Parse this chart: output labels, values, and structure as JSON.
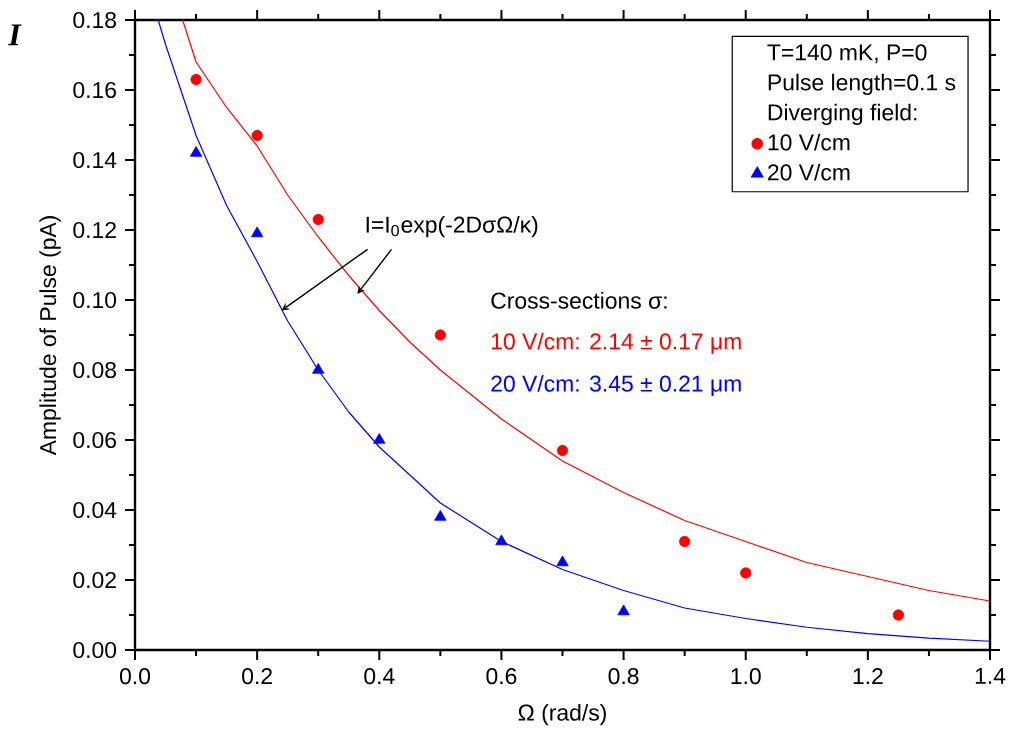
{
  "chart_data": {
    "type": "scatter",
    "xlabel": "Ω (rad/s)",
    "ylabel": "Amplitude of Pulse (pA)",
    "legend_title": "Diverging field:",
    "legend": "top right",
    "xlim": [
      0,
      1.4
    ],
    "ylim": [
      0,
      0.18
    ],
    "xticks": [
      {
        "value": 0,
        "label": "0.0"
      },
      {
        "value": 0.2,
        "label": "0.2"
      },
      {
        "value": 0.4,
        "label": "0.4"
      },
      {
        "value": 0.6,
        "label": "0.6"
      },
      {
        "value": 0.8,
        "label": "0.8"
      },
      {
        "value": 1,
        "label": "1.0"
      },
      {
        "value": 1.2,
        "label": "1.2"
      },
      {
        "value": 1.4,
        "label": "1.4"
      }
    ],
    "yticks": [
      {
        "value": 0,
        "label": "0.00"
      },
      {
        "value": 0.02,
        "label": "0.02"
      },
      {
        "value": 0.04,
        "label": "0.04"
      },
      {
        "value": 0.06,
        "label": "0.06"
      },
      {
        "value": 0.08,
        "label": "0.08"
      },
      {
        "value": 0.1,
        "label": "0.10"
      },
      {
        "value": 0.12,
        "label": "0.12"
      },
      {
        "value": 0.14,
        "label": "0.14"
      },
      {
        "value": 0.16,
        "label": "0.16"
      },
      {
        "value": 0.18,
        "label": "0.18"
      }
    ],
    "annotations": [
      "I",
      {
        "text": "I=I$_{0}$exp(-2DσΩ/κ)",
        "x": 0.24,
        "y": 0.097
      },
      "T=140 mK, P=0",
      "Pulse length=0.1 s",
      "Cross-sections σ:",
      "10 V/cm: 2.14 ± 0.17 μm",
      "20 V/cm: 3.45 ± 0.21 μm"
    ],
    "series": [
      {
        "name": "10 V/cm",
        "color": "#ff0000",
        "marker": "circle",
        "x": [
          0.1,
          0.2,
          0.3,
          0.5,
          0.7,
          0.9,
          1.0,
          1.25
        ],
        "values": [
          0.163,
          0.147,
          0.123,
          0.09,
          0.057,
          0.031,
          0.022,
          0.01
        ]
      },
      {
        "name": "20 V/cm",
        "color": "#0000ff",
        "marker": "triangle",
        "x": [
          0.1,
          0.2,
          0.3,
          0.4,
          0.5,
          0.6,
          0.7,
          0.8
        ],
        "values": [
          0.142,
          0.119,
          0.08,
          0.06,
          0.038,
          0.031,
          0.025,
          0.011
        ]
      },
      {
        "type": "line",
        "color": "#ff0000",
        "x": [
          0.078,
          0.1,
          0.15,
          0.2,
          0.25,
          0.3,
          0.35,
          0.4,
          0.45,
          0.5,
          0.6,
          0.7,
          0.8,
          0.9,
          1.0,
          1.1,
          1.2,
          1.3,
          1.4
        ],
        "values": [
          0.18,
          0.168,
          0.155,
          0.144,
          0.13,
          0.118,
          0.107,
          0.097,
          0.088,
          0.08,
          0.066,
          0.054,
          0.045,
          0.037,
          0.031,
          0.025,
          0.021,
          0.017,
          0.014
        ]
      },
      {
        "type": "line",
        "color": "#0000ff",
        "x": [
          0.038,
          0.05,
          0.1,
          0.15,
          0.2,
          0.25,
          0.3,
          0.35,
          0.4,
          0.45,
          0.5,
          0.6,
          0.7,
          0.8,
          0.9,
          1.0,
          1.1,
          1.2,
          1.3,
          1.4
        ],
        "values": [
          0.18,
          0.173,
          0.147,
          0.127,
          0.111,
          0.094,
          0.08,
          0.068,
          0.058,
          0.05,
          0.042,
          0.031,
          0.023,
          0.017,
          0.012,
          0.009,
          0.0065,
          0.0047,
          0.0034,
          0.0025
        ]
      }
    ]
  }
}
